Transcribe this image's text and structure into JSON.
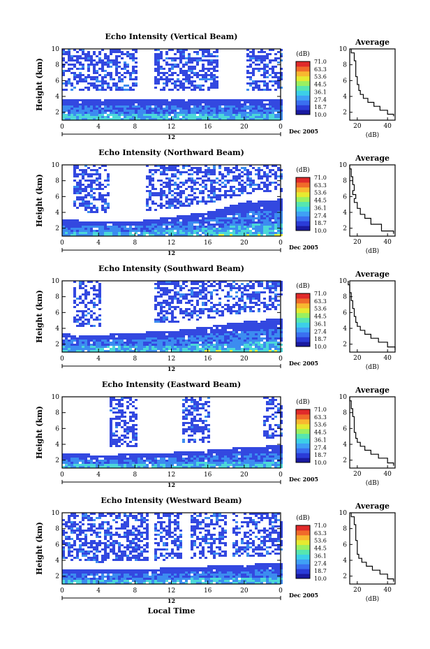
{
  "colors": {
    "colorbar": [
      "#1a1aa0",
      "#2b3cd8",
      "#3a6ff0",
      "#3fa0f5",
      "#3cd0e8",
      "#56e6b0",
      "#9af060",
      "#e6ea30",
      "#f8b830",
      "#f06a2a",
      "#e02a2a"
    ],
    "echo_low": "#3348e0",
    "echo_mid": "#3c8cf0",
    "echo_high": "#4cd8d8",
    "echo_peak": "#e8f040"
  },
  "shared": {
    "ylabel": "Height (km)",
    "yticks": [
      "2",
      "4",
      "6",
      "8",
      "10"
    ],
    "xticks": [
      "0",
      "4",
      "8",
      "12",
      "16",
      "20",
      "0"
    ],
    "day_tick": "12",
    "date_label": "Dec 2005",
    "colorbar_unit": "(dB)",
    "colorbar_ticks": [
      "71.0",
      "63.3",
      "53.6",
      "44.5",
      "36.1",
      "27.4",
      "18.7",
      "10.0"
    ],
    "avg_title": "Average",
    "avg_xlabel": "(dB)",
    "avg_yticks": [
      "2",
      "4",
      "6",
      "8",
      "10"
    ],
    "xlabel_bottom": "Local Time"
  },
  "panels": [
    {
      "title": "Echo Intensity (Vertical Beam)",
      "avg_xticks": [
        "20",
        "40"
      ]
    },
    {
      "title": "Echo Intensity (Northward Beam)",
      "avg_xticks": [
        "20",
        "40"
      ]
    },
    {
      "title": "Echo Intensity (Southward Beam)",
      "avg_xticks": [
        "20",
        "40"
      ]
    },
    {
      "title": "Echo Intensity (Eastward Beam)",
      "avg_xticks": [
        "20",
        "40"
      ]
    },
    {
      "title": "Echo Intensity (Westward Beam)",
      "avg_xticks": [
        "20",
        "40"
      ]
    }
  ],
  "chart_data": [
    {
      "type": "heatmap",
      "title": "Echo Intensity (Vertical Beam)",
      "ylabel": "Height (km)",
      "xlim": [
        0,
        24
      ],
      "ylim": [
        1,
        10
      ],
      "boundary_layer_top_km": [
        3.8,
        3.8,
        3.8,
        3.9,
        3.9,
        3.9,
        3.9
      ],
      "upper_echo_segments_h": [
        [
          0,
          8
        ],
        [
          10,
          17
        ],
        [
          20,
          24
        ]
      ],
      "average": {
        "x_dB": [
          16,
          18,
          19,
          19,
          20,
          21,
          22,
          24,
          27,
          31,
          35,
          40,
          44
        ],
        "height_km": [
          10,
          9,
          8,
          7,
          6,
          5,
          4.5,
          4,
          3.5,
          3,
          2.5,
          2,
          1.5
        ],
        "xlim": [
          15,
          45
        ]
      }
    },
    {
      "type": "heatmap",
      "title": "Echo Intensity (Northward Beam)",
      "ylabel": "Height (km)",
      "xlim": [
        0,
        24
      ],
      "ylim": [
        1,
        10
      ],
      "boundary_layer_top_km": [
        3.2,
        3.0,
        3.0,
        3.6,
        4.2,
        5.5,
        5.8
      ],
      "upper_echo_segments_h": [
        [
          1,
          5
        ],
        [
          9,
          24
        ]
      ],
      "average": {
        "x_dB": [
          15,
          16,
          17,
          18,
          17,
          19,
          18,
          20,
          22,
          25,
          29,
          36,
          44
        ],
        "height_km": [
          10,
          9,
          8,
          7,
          6.5,
          6,
          5.5,
          5,
          4,
          3.5,
          3,
          2,
          1.3
        ],
        "xlim": [
          15,
          45
        ]
      }
    },
    {
      "type": "heatmap",
      "title": "Echo Intensity (Southward Beam)",
      "ylabel": "Height (km)",
      "xlim": [
        0,
        24
      ],
      "ylim": [
        1,
        10
      ],
      "boundary_layer_top_km": [
        3.4,
        3.3,
        3.6,
        3.8,
        4.4,
        5.0,
        5.4
      ],
      "upper_echo_segments_h": [
        [
          1,
          4
        ],
        [
          10,
          24
        ]
      ],
      "average": {
        "x_dB": [
          14,
          15,
          16,
          17,
          18,
          19,
          20,
          22,
          25,
          29,
          34,
          40,
          45
        ],
        "height_km": [
          10,
          9,
          8,
          7,
          6,
          5,
          4.5,
          4,
          3.5,
          3,
          2.5,
          2,
          1.3
        ],
        "xlim": [
          15,
          45
        ]
      }
    },
    {
      "type": "heatmap",
      "title": "Echo Intensity (Eastward Beam)",
      "ylabel": "Height (km)",
      "xlim": [
        0,
        24
      ],
      "ylim": [
        1,
        10
      ],
      "boundary_layer_top_km": [
        3.0,
        2.8,
        2.9,
        3.1,
        3.4,
        3.8,
        4.0
      ],
      "upper_echo_segments_h": [
        [
          5,
          8
        ],
        [
          13,
          16
        ],
        [
          22,
          24
        ]
      ],
      "average": {
        "x_dB": [
          15,
          16,
          17,
          18,
          18,
          19,
          20,
          22,
          25,
          29,
          34,
          40,
          44
        ],
        "height_km": [
          10,
          9,
          8,
          7,
          6,
          5,
          4.5,
          4,
          3.5,
          3,
          2.5,
          2,
          1.3
        ],
        "xlim": [
          15,
          45
        ]
      }
    },
    {
      "type": "heatmap",
      "title": "Echo Intensity (Westward Beam)",
      "ylabel": "Height (km)",
      "xlabel": "Local Time",
      "xlim": [
        0,
        24
      ],
      "ylim": [
        1,
        10
      ],
      "boundary_layer_top_km": [
        3.0,
        2.9,
        3.0,
        3.2,
        3.4,
        3.6,
        3.8
      ],
      "upper_echo_segments_h": [
        [
          0,
          9.5
        ],
        [
          10,
          13
        ],
        [
          14,
          18
        ],
        [
          18.5,
          24
        ]
      ],
      "average": {
        "x_dB": [
          16,
          18,
          19,
          19,
          20,
          20,
          21,
          23,
          26,
          30,
          35,
          40,
          44
        ],
        "height_km": [
          10,
          9,
          8,
          7,
          6,
          5,
          4.5,
          4,
          3.5,
          3,
          2.5,
          2,
          1.3
        ],
        "xlim": [
          15,
          45
        ]
      }
    }
  ]
}
